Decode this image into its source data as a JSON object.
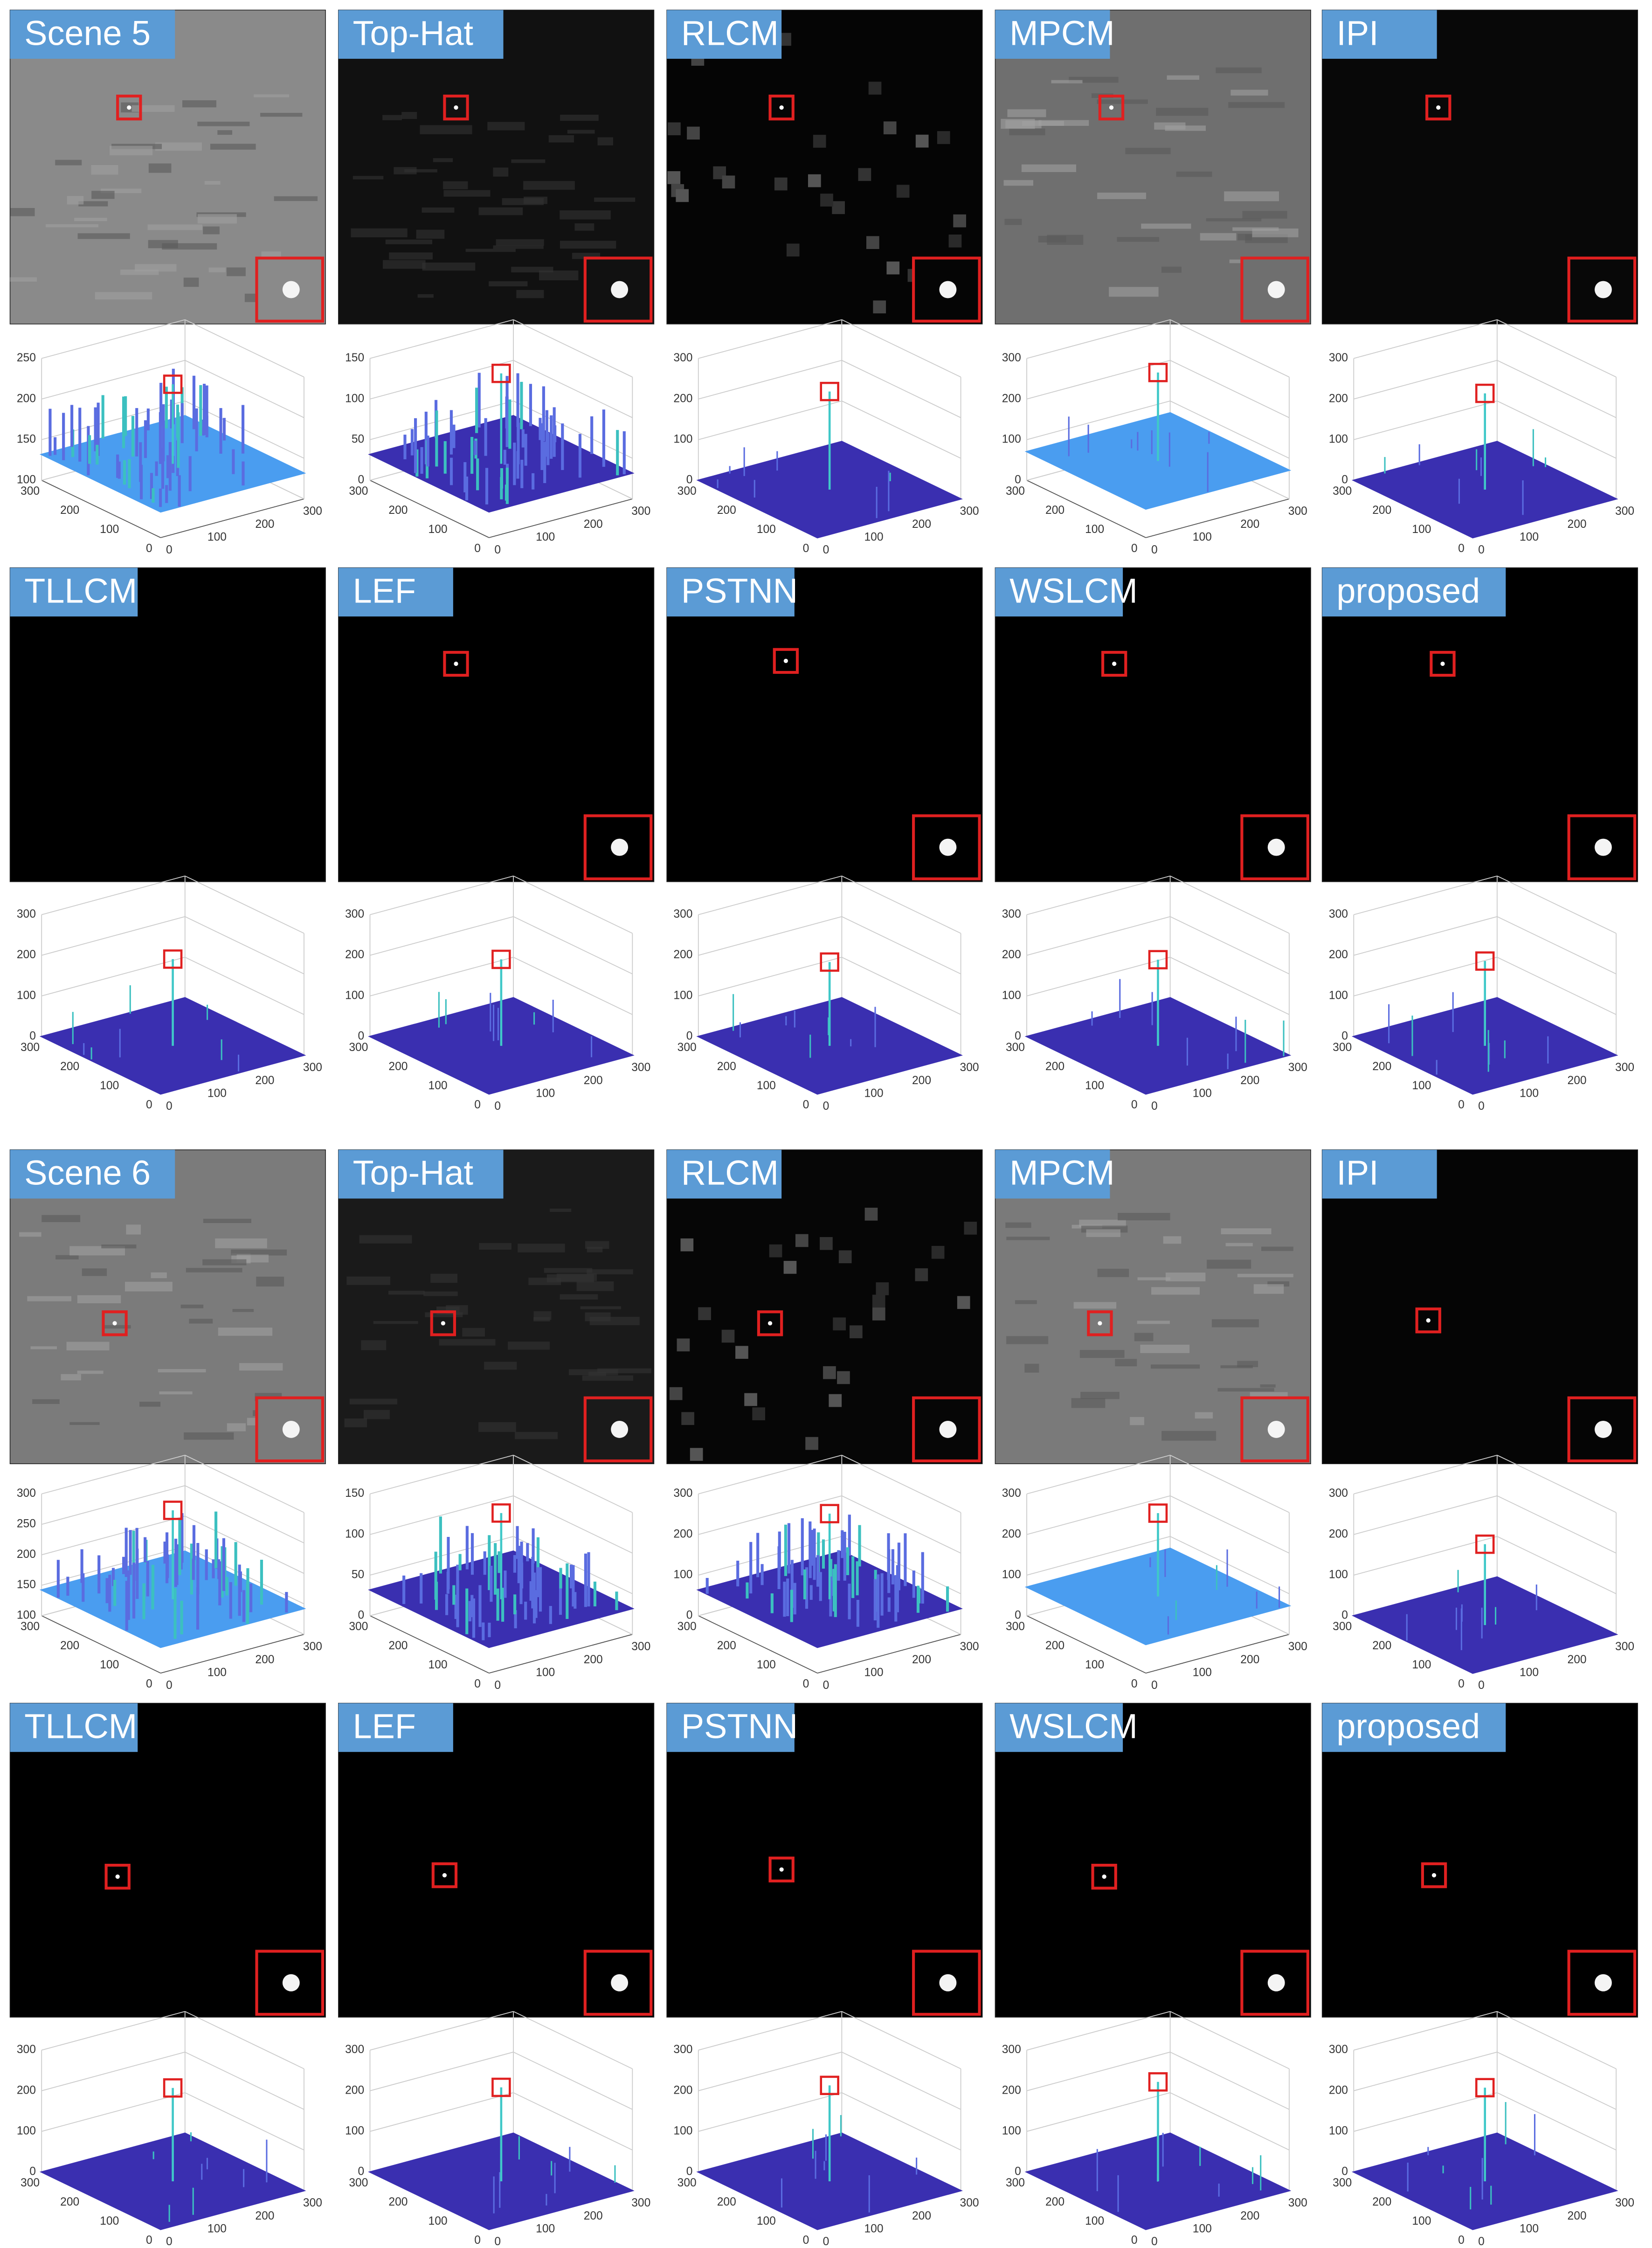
{
  "panels": [
    {
      "label": "Scene 5",
      "zticks": [
        100,
        150,
        200,
        250
      ]
    },
    {
      "label": "Top-Hat",
      "zticks": [
        0,
        50,
        100,
        150
      ]
    },
    {
      "label": "RLCM",
      "zticks": [
        0,
        100,
        200,
        300
      ]
    },
    {
      "label": "MPCM",
      "zticks": [
        0,
        100,
        200,
        300
      ]
    },
    {
      "label": "IPI",
      "zticks": [
        0,
        100,
        200,
        300
      ]
    },
    {
      "label": "TLLCM",
      "zticks": [
        0,
        100,
        200,
        300
      ]
    },
    {
      "label": "LEF",
      "zticks": [
        0,
        100,
        200,
        300
      ]
    },
    {
      "label": "PSTNN",
      "zticks": [
        0,
        100,
        200,
        300
      ]
    },
    {
      "label": "WSLCM",
      "zticks": [
        0,
        100,
        200,
        300
      ]
    },
    {
      "label": "proposed",
      "zticks": [
        0,
        100,
        200,
        300
      ]
    },
    {
      "label": "Scene 6",
      "zticks": [
        100,
        150,
        200,
        250,
        300
      ]
    },
    {
      "label": "Top-Hat",
      "zticks": [
        0,
        50,
        100,
        150
      ]
    },
    {
      "label": "RLCM",
      "zticks": [
        0,
        100,
        200,
        300
      ]
    },
    {
      "label": "MPCM",
      "zticks": [
        0,
        100,
        200,
        300
      ]
    },
    {
      "label": "IPI",
      "zticks": [
        0,
        100,
        200,
        300
      ]
    },
    {
      "label": "TLLCM",
      "zticks": [
        0,
        100,
        200,
        300
      ]
    },
    {
      "label": "LEF",
      "zticks": [
        0,
        100,
        200,
        300
      ]
    },
    {
      "label": "PSTNN",
      "zticks": [
        0,
        100,
        200,
        300
      ]
    },
    {
      "label": "WSLCM",
      "zticks": [
        0,
        100,
        200,
        300
      ]
    },
    {
      "label": "proposed",
      "zticks": [
        0,
        100,
        200,
        300
      ]
    }
  ],
  "floor_ticks": [
    0,
    100,
    200,
    300
  ]
}
